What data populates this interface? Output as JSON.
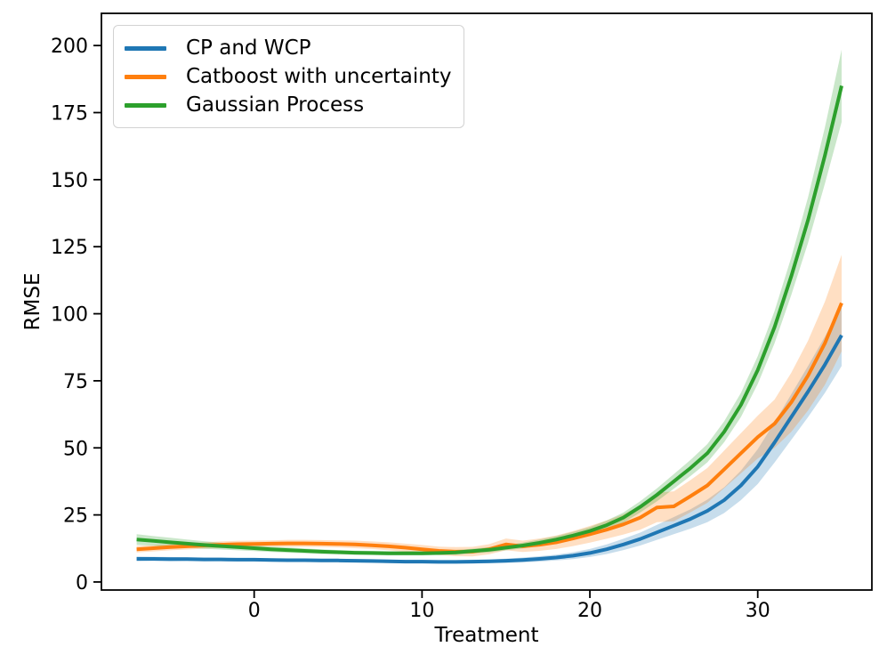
{
  "figure": {
    "background": "#ffffff",
    "spine_color": "#000000",
    "tick_color": "#000000"
  },
  "chart_data": {
    "type": "line",
    "title": "",
    "xlabel": "Treatment",
    "ylabel": "RMSE",
    "xlim": [
      -9.1,
      36.8
    ],
    "ylim": [
      -3,
      212
    ],
    "xticks": [
      0,
      10,
      20,
      30
    ],
    "yticks": [
      0,
      25,
      50,
      75,
      100,
      125,
      150,
      175,
      200
    ],
    "grid": false,
    "legend_position": "upper-left",
    "band_alpha": 0.25,
    "x": [
      -7,
      -6,
      -5,
      -4,
      -3,
      -2,
      -1,
      0,
      1,
      2,
      3,
      4,
      5,
      6,
      7,
      8,
      9,
      10,
      11,
      12,
      13,
      14,
      15,
      16,
      17,
      18,
      19,
      20,
      21,
      22,
      23,
      24,
      25,
      26,
      27,
      28,
      29,
      30,
      31,
      32,
      33,
      34,
      35
    ],
    "series": [
      {
        "name": "CP and WCP",
        "color": "#1f77b4",
        "values": [
          8.6,
          8.6,
          8.5,
          8.5,
          8.4,
          8.4,
          8.3,
          8.3,
          8.2,
          8.1,
          8.1,
          8.0,
          8.0,
          7.9,
          7.8,
          7.7,
          7.6,
          7.6,
          7.5,
          7.5,
          7.6,
          7.7,
          7.9,
          8.2,
          8.6,
          9.1,
          9.8,
          10.8,
          12.2,
          14.0,
          16.0,
          18.5,
          21.0,
          23.5,
          26.5,
          30.5,
          36.0,
          43.0,
          52.0,
          61.5,
          71.0,
          81.0,
          92.0
        ],
        "band_halfwidth": [
          0.9,
          0.8,
          0.8,
          0.7,
          0.7,
          0.6,
          0.6,
          0.6,
          0.6,
          0.6,
          0.6,
          0.6,
          0.6,
          0.6,
          0.6,
          0.6,
          0.6,
          0.6,
          0.6,
          0.6,
          0.7,
          0.7,
          0.8,
          0.9,
          1.0,
          1.1,
          1.3,
          1.5,
          1.8,
          2.1,
          2.4,
          2.8,
          3.2,
          3.6,
          4.2,
          4.8,
          5.5,
          6.5,
          7.5,
          8.5,
          9.5,
          10.5,
          11.5
        ]
      },
      {
        "name": "Catboost with uncertainty",
        "color": "#ff7f0e",
        "values": [
          12.2,
          12.6,
          13.0,
          13.3,
          13.6,
          13.9,
          14.1,
          14.2,
          14.3,
          14.4,
          14.4,
          14.3,
          14.2,
          14.0,
          13.7,
          13.3,
          12.8,
          12.2,
          11.6,
          11.3,
          11.3,
          12.2,
          14.0,
          13.3,
          13.9,
          14.8,
          16.2,
          17.8,
          19.5,
          21.5,
          24.0,
          27.8,
          28.2,
          32.0,
          36.0,
          42.0,
          48.0,
          54.0,
          59.0,
          67.0,
          77.0,
          89.0,
          104.0
        ],
        "band_halfwidth": [
          1.2,
          1.2,
          1.2,
          1.2,
          1.2,
          1.2,
          1.2,
          1.2,
          1.2,
          1.3,
          1.3,
          1.3,
          1.3,
          1.4,
          1.4,
          1.5,
          1.5,
          1.6,
          1.6,
          1.7,
          1.8,
          1.9,
          2.2,
          2.1,
          2.3,
          2.5,
          2.8,
          3.1,
          3.4,
          3.8,
          4.5,
          5.5,
          5.6,
          6.0,
          6.5,
          7.0,
          7.5,
          8.0,
          9.0,
          11.0,
          13.0,
          15.5,
          18.0
        ]
      },
      {
        "name": "Gaussian Process",
        "color": "#2ca02c",
        "values": [
          15.8,
          15.3,
          14.8,
          14.3,
          13.8,
          13.4,
          13.0,
          12.6,
          12.2,
          11.9,
          11.6,
          11.3,
          11.1,
          10.9,
          10.8,
          10.7,
          10.7,
          10.7,
          10.8,
          11.0,
          11.5,
          12.0,
          12.8,
          13.6,
          14.6,
          15.8,
          17.3,
          19.0,
          21.2,
          24.0,
          28.0,
          32.5,
          37.5,
          42.5,
          48.0,
          56.0,
          66.0,
          79.0,
          95.0,
          114.0,
          135.0,
          159.0,
          185.0
        ],
        "band_halfwidth": [
          2.0,
          1.8,
          1.7,
          1.5,
          1.4,
          1.3,
          1.2,
          1.1,
          1.0,
          1.0,
          0.9,
          0.9,
          0.8,
          0.8,
          0.8,
          0.8,
          0.8,
          0.8,
          0.8,
          0.9,
          0.9,
          1.0,
          1.0,
          1.1,
          1.2,
          1.3,
          1.4,
          1.5,
          1.7,
          1.9,
          2.1,
          2.4,
          2.7,
          3.0,
          3.4,
          3.9,
          4.5,
          5.2,
          6.0,
          7.0,
          8.5,
          10.5,
          13.5
        ]
      }
    ]
  }
}
